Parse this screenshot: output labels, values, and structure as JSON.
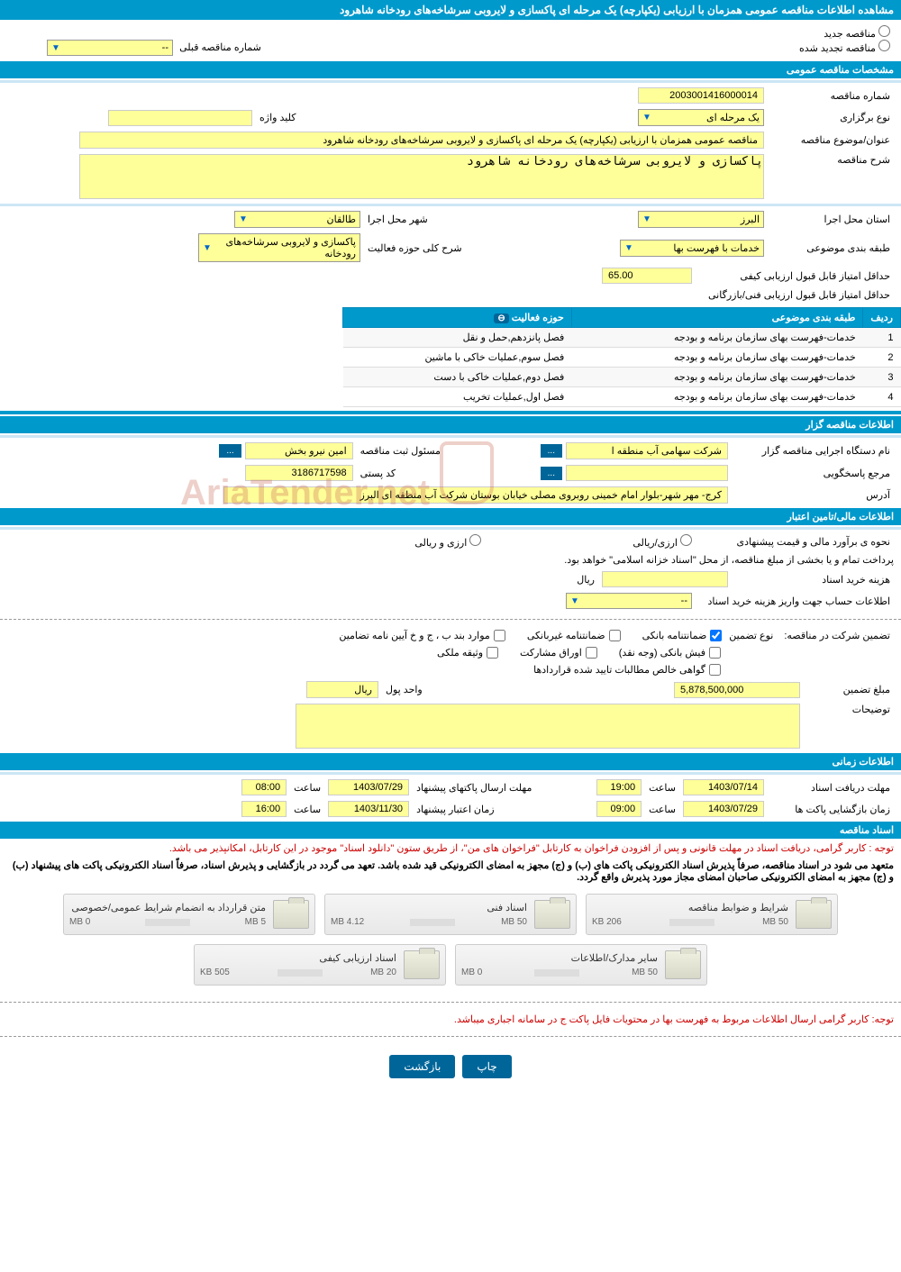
{
  "colors": {
    "primary": "#0099cc",
    "field_bg": "#ffff99",
    "red_text": "#cc0000",
    "btn_bg": "#006699"
  },
  "main_title": "مشاهده اطلاعات مناقصه عمومی همزمان با ارزیابی (یکپارچه) یک مرحله ای پاکسازی و لایروبی سرشاخه‌های رودخانه شاهرود",
  "radio_options": {
    "new_tender": "مناقصه جدید",
    "renewed_tender": "مناقصه تجدید شده",
    "prev_tender_label": "شماره مناقصه قبلی",
    "prev_tender_value": "--"
  },
  "sections": {
    "general_specs": "مشخصات مناقصه عمومی",
    "organizer_info": "اطلاعات مناقصه گزار",
    "financial_info": "اطلاعات مالی/تامین اعتبار",
    "time_info": "اطلاعات زمانی",
    "tender_docs": "اسناد مناقصه"
  },
  "general": {
    "tender_number_label": "شماره مناقصه",
    "tender_number": "2003001416000014",
    "holding_type_label": "نوع برگزاری",
    "holding_type": "یک مرحله ای",
    "keyword_label": "کلید واژه",
    "title_label": "عنوان/موضوع مناقصه",
    "title_value": "مناقصه عمومی همزمان با ارزیابی (یکپارچه) یک مرحله ای پاکسازی و لایروبی سرشاخه‌های رودخانه شاهرود",
    "description_label": "شرح مناقصه",
    "description_value": "پاکسازی و لایروبی سرشاخه‌های رودخانه شاهرود",
    "province_label": "استان محل اجرا",
    "province_value": "البرز",
    "city_label": "شهر محل اجرا",
    "city_value": "طالقان",
    "subject_class_label": "طبقه بندی موضوعی",
    "subject_class_value": "خدمات با فهرست بها",
    "activity_scope_label": "شرح کلی حوزه فعالیت",
    "activity_scope_value": "پاکسازی و لایروبی سرشاخه‌های رودخانه",
    "min_qual_score_label": "حداقل امتیاز قابل قبول ارزیابی کیفی",
    "min_qual_score": "65.00",
    "min_tech_score_label": "حداقل امتیاز قابل قبول ارزیابی فنی/بازرگانی"
  },
  "activity_table": {
    "title": "حوزه های فعالیت",
    "headers": {
      "row": "ردیف",
      "subject_class": "طبقه بندی موضوعی",
      "activity_scope": "حوزه فعالیت"
    },
    "rows": [
      {
        "num": "1",
        "class": "خدمات-فهرست بهای سازمان برنامه و بودجه",
        "scope": "فصل پانزدهم,حمل و نقل"
      },
      {
        "num": "2",
        "class": "خدمات-فهرست بهای سازمان برنامه و بودجه",
        "scope": "فصل سوم,عملیات خاکی با ماشین"
      },
      {
        "num": "3",
        "class": "خدمات-فهرست بهای سازمان برنامه و بودجه",
        "scope": "فصل دوم,عملیات خاکی با دست"
      },
      {
        "num": "4",
        "class": "خدمات-فهرست بهای سازمان برنامه و بودجه",
        "scope": "فصل اول,عملیات تخریب"
      }
    ]
  },
  "organizer": {
    "exec_name_label": "نام دستگاه اجرایی مناقصه گزار",
    "exec_name": "شرکت سهامی آب منطقه ا",
    "reg_officer_label": "مسئول ثبت مناقصه",
    "reg_officer": "امین  نیرو بخش",
    "contact_label": "مرجع پاسخگویی",
    "postal_code_label": "کد پستی",
    "postal_code": "3186717598",
    "address_label": "آدرس",
    "address_value": "کرج- مهر شهر-بلوار امام خمینی روبروی مصلی خیابان بوستان شرکت آب منطقه ای البرز",
    "more_btn": "..."
  },
  "financial": {
    "estimate_label": "نحوه ی برآورد مالی و قیمت پیشنهادی",
    "option_rial": "ارزی/ریالی",
    "option_currency": "ارزی و ریالی",
    "payment_note": "پرداخت تمام و یا بخشی از مبلغ مناقصه، از محل \"اسناد خزانه اسلامی\" خواهد بود.",
    "doc_cost_label": "هزینه خرید اسناد",
    "currency_unit": "ریال",
    "account_info_label": "اطلاعات حساب جهت واریز هزینه خرید اسناد",
    "account_info_value": "--",
    "guarantee_label": "تضمین شرکت در مناقصه:",
    "guarantee_type_label": "نوع تضمین",
    "guarantee_options": {
      "bank_guarantee": "ضمانتنامه بانکی",
      "non_bank_guarantee": "ضمانتنامه غیربانکی",
      "items_bpj": "موارد بند ب ، ج و خ آیین نامه تضامین",
      "bank_receipt": "فیش بانکی (وجه نقد)",
      "participation_bonds": "اوراق مشارکت",
      "property_deed": "وثیقه ملکی",
      "certified_claims": "گواهی خالص مطالبات تایید شده قراردادها"
    },
    "guarantee_amount_label": "مبلغ تضمین",
    "guarantee_amount": "5,878,500,000",
    "currency_unit_label": "واحد پول",
    "currency_unit_value": "ریال",
    "notes_label": "توضیحات"
  },
  "timing": {
    "doc_receive_deadline_label": "مهلت دریافت اسناد",
    "doc_receive_date": "1403/07/14",
    "doc_receive_time": "19:00",
    "envelope_send_deadline_label": "مهلت ارسال پاکتهای پیشنهاد",
    "envelope_send_date": "1403/07/29",
    "envelope_send_time": "08:00",
    "envelope_open_label": "زمان بازگشایی پاکت ها",
    "envelope_open_date": "1403/07/29",
    "envelope_open_time": "09:00",
    "bid_validity_label": "زمان اعتبار پیشنهاد",
    "bid_validity_date": "1403/11/30",
    "bid_validity_time": "16:00",
    "time_label": "ساعت"
  },
  "docs": {
    "notice1": "توجه : کاربر گرامی، دریافت اسناد در مهلت قانونی و پس از افزودن فراخوان به کارتابل \"فراخوان های من\"، از طریق ستون \"دانلود اسناد\" موجود در این کارتابل، امکانپذیر می باشد.",
    "notice2": "متعهد می شود در اسناد مناقصه، صرفاً پذیرش اسناد الکترونیکی پاکت های (ب) و (ج) مجهز به امضای الکترونیکی قید شده باشد. تعهد می گردد در بازگشایی و پذیرش اسناد، صرفاً اسناد الکترونیکی پاکت های پیشنهاد (ب) و (ج) مجهز به امضای الکترونیکی صاحبان امضای مجاز مورد پذیرش واقع گردد.",
    "files": [
      {
        "title": "شرایط و ضوابط مناقصه",
        "size": "206 KB",
        "max": "50 MB",
        "fill": 2
      },
      {
        "title": "اسناد فنی",
        "size": "4.12 MB",
        "max": "50 MB",
        "fill": 10
      },
      {
        "title": "متن قرارداد به انضمام شرایط عمومی/خصوصی",
        "size": "0 MB",
        "max": "5 MB",
        "fill": 0
      },
      {
        "title": "سایر مدارک/اطلاعات",
        "size": "0 MB",
        "max": "50 MB",
        "fill": 0
      },
      {
        "title": "اسناد ارزیابی کیفی",
        "size": "505 KB",
        "max": "20 MB",
        "fill": 3
      }
    ],
    "bottom_notice": "توجه: کاربر گرامی ارسال اطلاعات مربوط به فهرست بها در محتویات فایل پاکت ج در سامانه اجباری میباشد."
  },
  "buttons": {
    "print": "چاپ",
    "back": "بازگشت"
  }
}
